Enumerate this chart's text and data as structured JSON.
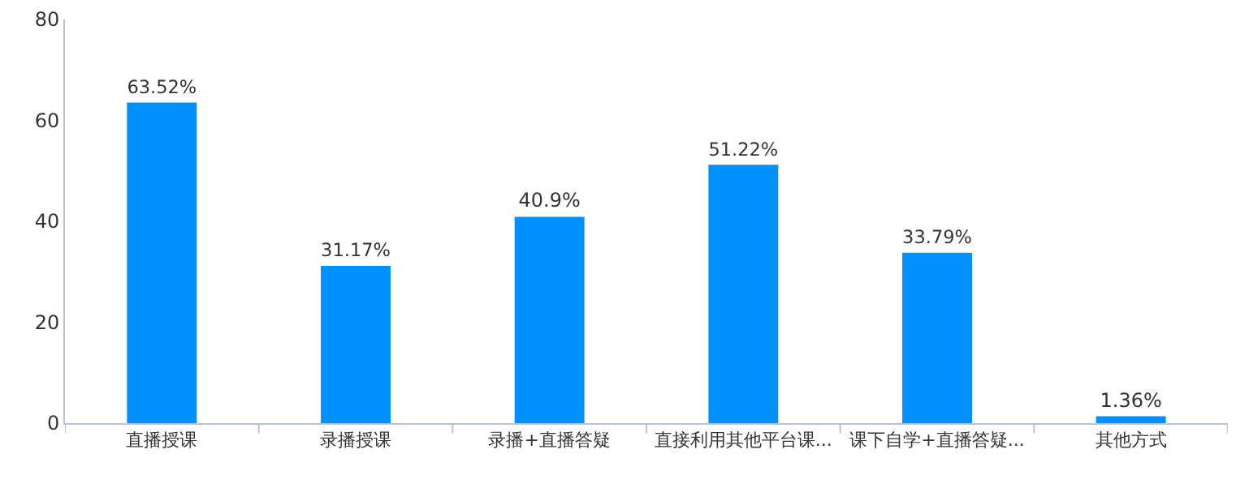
{
  "chart_data": {
    "type": "bar",
    "categories": [
      "直播授课",
      "录播授课",
      "录播+直播答疑",
      "直接利用其他平台课...",
      "课下自学+直播答疑...",
      "其他方式"
    ],
    "values": [
      63.52,
      31.17,
      40.9,
      51.22,
      33.79,
      1.36
    ],
    "value_labels": [
      "63.52%",
      "31.17%",
      "40.9%",
      "51.22%",
      "33.79%",
      "1.36%"
    ],
    "color": "#0091ff",
    "ylim": [
      0,
      80
    ],
    "yticks": [
      0,
      20,
      40,
      60,
      80
    ]
  }
}
